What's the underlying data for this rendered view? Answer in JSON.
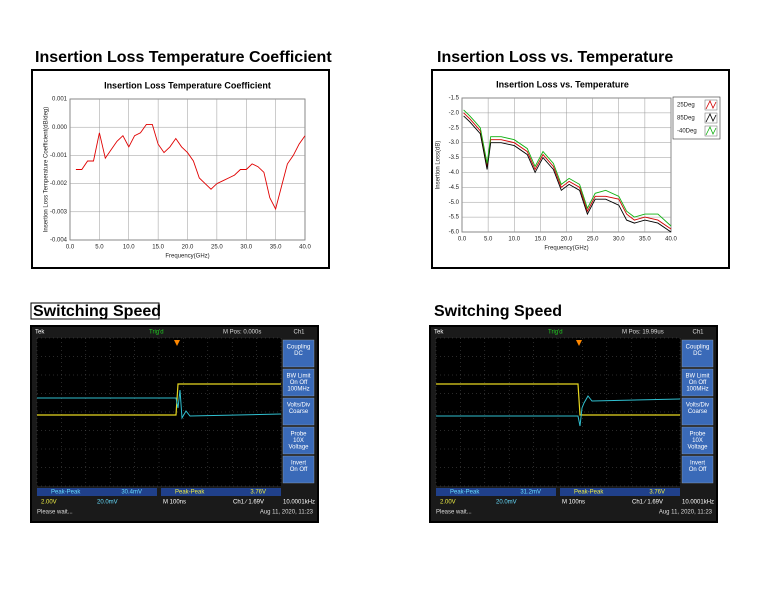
{
  "chart_data": [
    {
      "type": "line",
      "heading": "Insertion Loss Temperature Coefficient",
      "title": "Insertion Loss Temperature Coefficient",
      "x_label": "Frequency(GHz)",
      "y_label": "Insertion Loss Temperature Coefficient(dB/deg)",
      "x": [
        1,
        2,
        3,
        4,
        5,
        6,
        7,
        8,
        9,
        10,
        11,
        12,
        13,
        14,
        15,
        16,
        17,
        18,
        19,
        20,
        21,
        22,
        23,
        24,
        25,
        26,
        27,
        28,
        29,
        30,
        31,
        32,
        33,
        34,
        35,
        36,
        37,
        38,
        39,
        40
      ],
      "series": [
        {
          "name": null,
          "color": "#e00000",
          "values": [
            -0.0015,
            -0.0015,
            -0.0012,
            -0.0012,
            -0.0002,
            -0.0011,
            -0.0008,
            -0.0005,
            -0.0003,
            -0.0007,
            -0.0003,
            -0.0002,
            0.0001,
            0.0001,
            -0.0006,
            -0.0009,
            -0.0007,
            -0.0004,
            -0.0007,
            -0.0009,
            -0.0012,
            -0.0018,
            -0.002,
            -0.0022,
            -0.002,
            -0.0019,
            -0.0018,
            -0.0017,
            -0.0015,
            -0.0015,
            -0.0013,
            -0.0014,
            -0.0016,
            -0.0025,
            -0.0029,
            -0.0021,
            -0.0013,
            -0.001,
            -0.0006,
            -0.0003
          ]
        }
      ],
      "xlim": [
        0,
        40
      ],
      "ylim": [
        -0.004,
        0.001
      ],
      "xticks": [
        {
          "value": 0,
          "label": "0.0"
        },
        {
          "value": 5,
          "label": "5.0"
        },
        {
          "value": 10,
          "label": "10.0"
        },
        {
          "value": 15,
          "label": "15.0"
        },
        {
          "value": 20,
          "label": "20.0"
        },
        {
          "value": 25,
          "label": "25.0"
        },
        {
          "value": 30,
          "label": "30.0"
        },
        {
          "value": 35,
          "label": "35.0"
        },
        {
          "value": 40,
          "label": "40.0"
        }
      ],
      "yticks": [
        0.001,
        {
          "value": 0,
          "label": "0.000"
        },
        -0.001,
        -0.002,
        -0.003,
        -0.004
      ],
      "grid": true
    },
    {
      "type": "line",
      "heading": "Insertion Loss vs. Temperature",
      "title": "Insertion Loss vs. Temperature",
      "x_label": "Frequency(GHz)",
      "y_label": "Insertion Loss(dB)",
      "x": [
        0.3,
        1.5,
        2.5,
        3.5,
        4.8,
        5.5,
        7.5,
        10,
        12.5,
        14,
        15.5,
        17.5,
        19,
        20.5,
        22.5,
        24,
        25.5,
        27.5,
        30,
        31.5,
        33,
        35,
        37.5,
        40
      ],
      "series": [
        {
          "name": "25Deg",
          "color": "#d00000",
          "values": [
            -2.0,
            -2.2,
            -2.4,
            -2.6,
            -3.8,
            -2.9,
            -2.9,
            -3.0,
            -3.3,
            -3.9,
            -3.4,
            -3.8,
            -4.5,
            -4.3,
            -4.5,
            -5.3,
            -4.8,
            -4.8,
            -4.9,
            -5.4,
            -5.6,
            -5.5,
            -5.6,
            -5.9
          ]
        },
        {
          "name": "85Deg",
          "color": "#000000",
          "values": [
            -2.1,
            -2.3,
            -2.5,
            -2.7,
            -3.9,
            -3.0,
            -3.0,
            -3.1,
            -3.4,
            -4.0,
            -3.5,
            -3.9,
            -4.6,
            -4.4,
            -4.6,
            -5.4,
            -4.9,
            -4.9,
            -5.1,
            -5.6,
            -5.7,
            -5.6,
            -5.7,
            -6.0
          ]
        },
        {
          "name": "-40Deg",
          "color": "#10b010",
          "values": [
            -1.9,
            -2.1,
            -2.3,
            -2.5,
            -3.7,
            -2.8,
            -2.8,
            -2.9,
            -3.2,
            -3.8,
            -3.3,
            -3.7,
            -4.4,
            -4.2,
            -4.4,
            -5.2,
            -4.7,
            -4.6,
            -4.8,
            -5.3,
            -5.5,
            -5.4,
            -5.4,
            -5.8
          ]
        }
      ],
      "xlim": [
        0,
        40
      ],
      "ylim": [
        -6,
        -1.5
      ],
      "xticks": [
        {
          "value": 0,
          "label": "0.0"
        },
        {
          "value": 5,
          "label": "5.0"
        },
        {
          "value": 10,
          "label": "10.0"
        },
        {
          "value": 15,
          "label": "15.0"
        },
        {
          "value": 20,
          "label": "20.0"
        },
        {
          "value": 25,
          "label": "25.0"
        },
        {
          "value": 30,
          "label": "30.0"
        },
        {
          "value": 35,
          "label": "35.0"
        },
        {
          "value": 40,
          "label": "40.0"
        }
      ],
      "yticks": [
        -1.5,
        {
          "value": -2,
          "label": "-2.0"
        },
        -2.5,
        {
          "value": -3,
          "label": "-3.0"
        },
        -3.5,
        {
          "value": -4,
          "label": "-4.0"
        },
        -4.5,
        {
          "value": -5,
          "label": "-5.0"
        },
        -5.5,
        {
          "value": -6,
          "label": "-6.0"
        }
      ],
      "grid": true,
      "legend": "right"
    }
  ],
  "scopes": [
    {
      "heading": "Switching Speed",
      "tek": "Tek",
      "trig": "Trig'd",
      "mpos": "M Pos: 0.000s",
      "ch": "Ch1",
      "menu": [
        [
          "Coupling",
          "DC"
        ],
        [
          "BW Limit",
          "On  Off",
          "100MHz"
        ],
        [
          "Volts/Div",
          "Coarse"
        ],
        [
          "Probe",
          "10X",
          "Voltage"
        ],
        [
          "Invert",
          "On  Off"
        ]
      ],
      "meas": [
        [
          "Peak-Peak",
          "30.4mV"
        ],
        [
          "Peak-Peak",
          "3.76V"
        ]
      ],
      "row2": [
        "2.00V",
        "20.0mV",
        "M 100ns",
        "Ch1 ∕ 1.69V",
        "10.0001kHz"
      ],
      "status": "Please wait...",
      "date": "Aug 11, 2020, 11:23"
    },
    {
      "heading": "Switching Speed",
      "tek": "Tek",
      "trig": "Trig'd",
      "mpos": "M Pos: 19.99us",
      "ch": "Ch1",
      "menu": [
        [
          "Coupling",
          "DC"
        ],
        [
          "BW Limit",
          "On  Off",
          "100MHz"
        ],
        [
          "Volts/Div",
          "Coarse"
        ],
        [
          "Probe",
          "10X",
          "Voltage"
        ],
        [
          "Invert",
          "On  Off"
        ]
      ],
      "meas": [
        [
          "Peak-Peak",
          "31.2mV"
        ],
        [
          "Peak-Peak",
          "3.76V"
        ]
      ],
      "row2": [
        "2.00V",
        "20.0mV",
        "M 100ns",
        "Ch1 ∕ 1.69V",
        "10.0001kHz"
      ],
      "status": "Please wait...",
      "date": "Aug 11, 2020, 11:23"
    }
  ]
}
